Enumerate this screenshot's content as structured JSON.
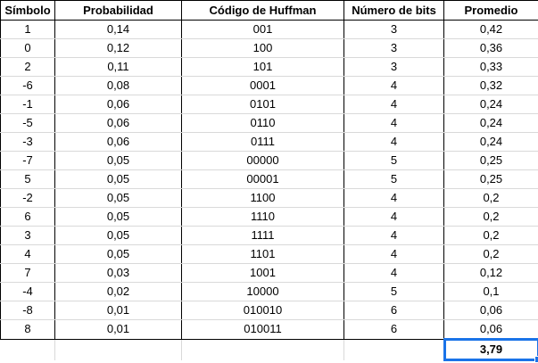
{
  "table": {
    "headers": [
      "Símbolo",
      "Probabilidad",
      "Código de Huffman",
      "Número de bits",
      "Promedio"
    ],
    "rows": [
      [
        "1",
        "0,14",
        "001",
        "3",
        "0,42"
      ],
      [
        "0",
        "0,12",
        "100",
        "3",
        "0,36"
      ],
      [
        "2",
        "0,11",
        "101",
        "3",
        "0,33"
      ],
      [
        "-6",
        "0,08",
        "0001",
        "4",
        "0,32"
      ],
      [
        "-1",
        "0,06",
        "0101",
        "4",
        "0,24"
      ],
      [
        "-5",
        "0,06",
        "0110",
        "4",
        "0,24"
      ],
      [
        "-3",
        "0,06",
        "0111",
        "4",
        "0,24"
      ],
      [
        "-7",
        "0,05",
        "00000",
        "5",
        "0,25"
      ],
      [
        "5",
        "0,05",
        "00001",
        "5",
        "0,25"
      ],
      [
        "-2",
        "0,05",
        "1100",
        "4",
        "0,2"
      ],
      [
        "6",
        "0,05",
        "1110",
        "4",
        "0,2"
      ],
      [
        "3",
        "0,05",
        "1111",
        "4",
        "0,2"
      ],
      [
        "4",
        "0,05",
        "1101",
        "4",
        "0,2"
      ],
      [
        "7",
        "0,03",
        "1001",
        "4",
        "0,12"
      ],
      [
        "-4",
        "0,02",
        "10000",
        "5",
        "0,1"
      ],
      [
        "-8",
        "0,01",
        "010010",
        "6",
        "0,06"
      ],
      [
        "8",
        "0,01",
        "010011",
        "6",
        "0,06"
      ]
    ],
    "total": "3,79"
  },
  "colors": {
    "selection": "#1a73e8",
    "gridline": "#d9d9d9"
  }
}
